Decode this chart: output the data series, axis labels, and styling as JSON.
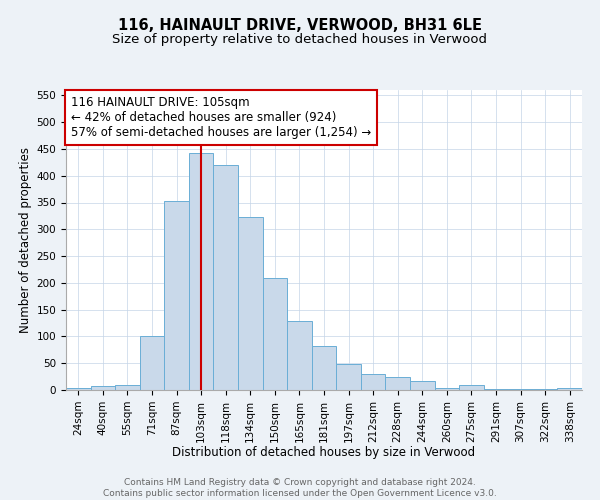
{
  "title": "116, HAINAULT DRIVE, VERWOOD, BH31 6LE",
  "subtitle": "Size of property relative to detached houses in Verwood",
  "xlabel": "Distribution of detached houses by size in Verwood",
  "ylabel": "Number of detached properties",
  "categories": [
    "24sqm",
    "40sqm",
    "55sqm",
    "71sqm",
    "87sqm",
    "103sqm",
    "118sqm",
    "134sqm",
    "150sqm",
    "165sqm",
    "181sqm",
    "197sqm",
    "212sqm",
    "228sqm",
    "244sqm",
    "260sqm",
    "275sqm",
    "291sqm",
    "307sqm",
    "322sqm",
    "338sqm"
  ],
  "values": [
    3,
    7,
    10,
    100,
    353,
    443,
    420,
    323,
    210,
    128,
    83,
    49,
    29,
    24,
    17,
    4,
    10,
    2,
    1,
    1,
    3
  ],
  "bar_color": "#c9d9ea",
  "bar_edge_color": "#6aaed6",
  "vline_x": 5,
  "vline_color": "#cc0000",
  "annotation_text": "116 HAINAULT DRIVE: 105sqm\n← 42% of detached houses are smaller (924)\n57% of semi-detached houses are larger (1,254) →",
  "annotation_box_color": "#ffffff",
  "annotation_box_edge_color": "#cc0000",
  "ylim": [
    0,
    560
  ],
  "yticks": [
    0,
    50,
    100,
    150,
    200,
    250,
    300,
    350,
    400,
    450,
    500,
    550
  ],
  "footer_text": "Contains HM Land Registry data © Crown copyright and database right 2024.\nContains public sector information licensed under the Open Government Licence v3.0.",
  "title_fontsize": 10.5,
  "subtitle_fontsize": 9.5,
  "axis_label_fontsize": 8.5,
  "tick_fontsize": 7.5,
  "annotation_fontsize": 8.5,
  "footer_fontsize": 6.5,
  "background_color": "#edf2f7",
  "plot_background_color": "#ffffff",
  "grid_color": "#c5d5e8"
}
